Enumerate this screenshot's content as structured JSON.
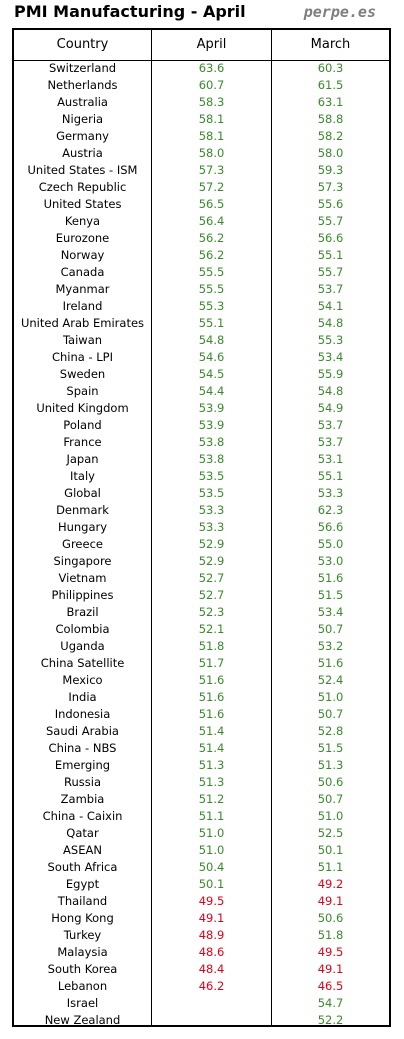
{
  "title": "PMI Manufacturing - April",
  "brand": "perpe.es",
  "colors": {
    "expansion": "#3a8a2c",
    "contraction": "#e0001a",
    "grid": "#000000"
  },
  "chart_data": {
    "type": "table",
    "threshold": 50,
    "columns": [
      "Country",
      "April",
      "March"
    ],
    "rows": [
      [
        "Switzerland",
        "63.6",
        "60.3"
      ],
      [
        "Netherlands",
        "60.7",
        "61.5"
      ],
      [
        "Australia",
        "58.3",
        "63.1"
      ],
      [
        "Nigeria",
        "58.1",
        "58.8"
      ],
      [
        "Germany",
        "58.1",
        "58.2"
      ],
      [
        "Austria",
        "58.0",
        "58.0"
      ],
      [
        "United States - ISM",
        "57.3",
        "59.3"
      ],
      [
        "Czech Republic",
        "57.2",
        "57.3"
      ],
      [
        "United States",
        "56.5",
        "55.6"
      ],
      [
        "Kenya",
        "56.4",
        "55.7"
      ],
      [
        "Eurozone",
        "56.2",
        "56.6"
      ],
      [
        "Norway",
        "56.2",
        "55.1"
      ],
      [
        "Canada",
        "55.5",
        "55.7"
      ],
      [
        "Myanmar",
        "55.5",
        "53.7"
      ],
      [
        "Ireland",
        "55.3",
        "54.1"
      ],
      [
        "United Arab Emirates",
        "55.1",
        "54.8"
      ],
      [
        "Taiwan",
        "54.8",
        "55.3"
      ],
      [
        "China - LPI",
        "54.6",
        "53.4"
      ],
      [
        "Sweden",
        "54.5",
        "55.9"
      ],
      [
        "Spain",
        "54.4",
        "54.8"
      ],
      [
        "United Kingdom",
        "53.9",
        "54.9"
      ],
      [
        "Poland",
        "53.9",
        "53.7"
      ],
      [
        "France",
        "53.8",
        "53.7"
      ],
      [
        "Japan",
        "53.8",
        "53.1"
      ],
      [
        "Italy",
        "53.5",
        "55.1"
      ],
      [
        "Global",
        "53.5",
        "53.3"
      ],
      [
        "Denmark",
        "53.3",
        "62.3"
      ],
      [
        "Hungary",
        "53.3",
        "56.6"
      ],
      [
        "Greece",
        "52.9",
        "55.0"
      ],
      [
        "Singapore",
        "52.9",
        "53.0"
      ],
      [
        "Vietnam",
        "52.7",
        "51.6"
      ],
      [
        "Philippines",
        "52.7",
        "51.5"
      ],
      [
        "Brazil",
        "52.3",
        "53.4"
      ],
      [
        "Colombia",
        "52.1",
        "50.7"
      ],
      [
        "Uganda",
        "51.8",
        "53.2"
      ],
      [
        "China Satellite",
        "51.7",
        "51.6"
      ],
      [
        "Mexico",
        "51.6",
        "52.4"
      ],
      [
        "India",
        "51.6",
        "51.0"
      ],
      [
        "Indonesia",
        "51.6",
        "50.7"
      ],
      [
        "Saudi Arabia",
        "51.4",
        "52.8"
      ],
      [
        "China - NBS",
        "51.4",
        "51.5"
      ],
      [
        "Emerging",
        "51.3",
        "51.3"
      ],
      [
        "Russia",
        "51.3",
        "50.6"
      ],
      [
        "Zambia",
        "51.2",
        "50.7"
      ],
      [
        "China - Caixin",
        "51.1",
        "51.0"
      ],
      [
        "Qatar",
        "51.0",
        "52.5"
      ],
      [
        "ASEAN",
        "51.0",
        "50.1"
      ],
      [
        "South Africa",
        "50.4",
        "51.1"
      ],
      [
        "Egypt",
        "50.1",
        "49.2"
      ],
      [
        "Thailand",
        "49.5",
        "49.1"
      ],
      [
        "Hong Kong",
        "49.1",
        "50.6"
      ],
      [
        "Turkey",
        "48.9",
        "51.8"
      ],
      [
        "Malaysia",
        "48.6",
        "49.5"
      ],
      [
        "South Korea",
        "48.4",
        "49.1"
      ],
      [
        "Lebanon",
        "46.2",
        "46.5"
      ],
      [
        "Israel",
        "",
        "54.7"
      ],
      [
        "New Zealand",
        "",
        "52.2"
      ]
    ]
  }
}
